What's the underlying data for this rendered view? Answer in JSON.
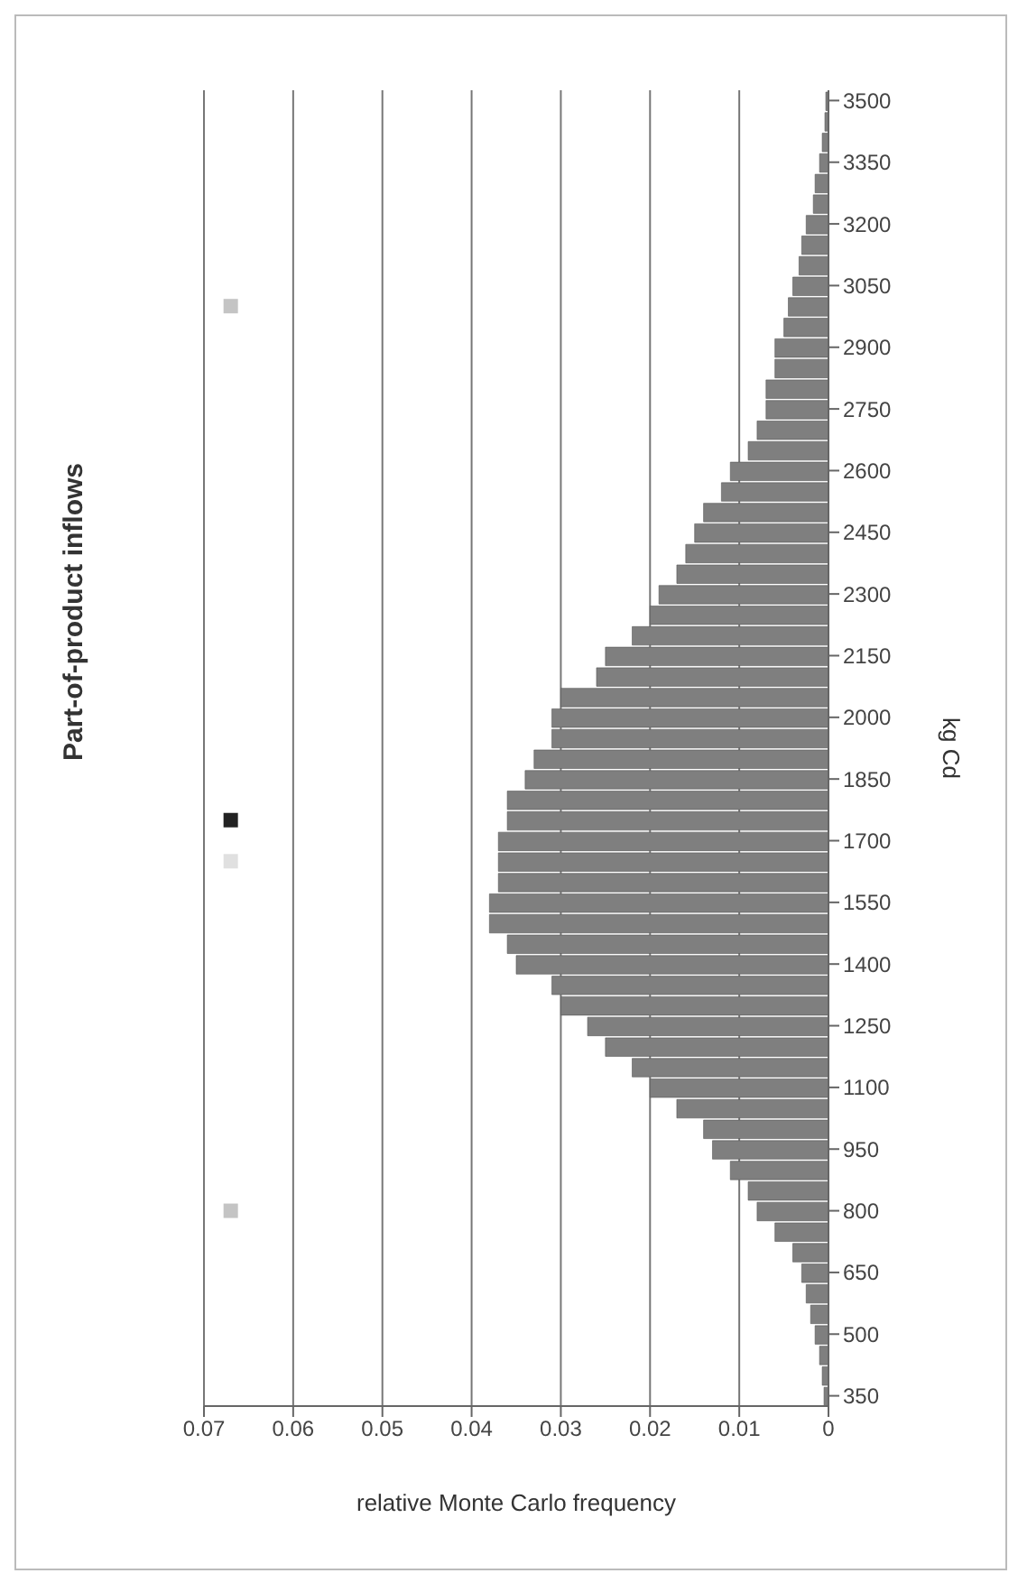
{
  "chart_data": {
    "type": "histogram",
    "orientation": "horizontal",
    "title": "Part-of-product inflows",
    "ylabel": "kg Cd",
    "xlabel": "relative Monte Carlo frequency",
    "bins": [
      325,
      375,
      425,
      475,
      525,
      575,
      625,
      675,
      725,
      775,
      825,
      875,
      925,
      975,
      1025,
      1075,
      1125,
      1175,
      1225,
      1275,
      1325,
      1375,
      1425,
      1475,
      1525,
      1575,
      1625,
      1675,
      1725,
      1775,
      1825,
      1875,
      1925,
      1975,
      2025,
      2075,
      2125,
      2175,
      2225,
      2275,
      2325,
      2375,
      2425,
      2475,
      2525,
      2575,
      2625,
      2675,
      2725,
      2775,
      2825,
      2875,
      2925,
      2975,
      3025,
      3075,
      3125,
      3175,
      3225,
      3275,
      3325,
      3375,
      3425,
      3475,
      3525
    ],
    "values": [
      0.0005,
      0.0007,
      0.001,
      0.0015,
      0.002,
      0.0025,
      0.003,
      0.004,
      0.006,
      0.008,
      0.009,
      0.011,
      0.013,
      0.014,
      0.017,
      0.02,
      0.022,
      0.025,
      0.027,
      0.03,
      0.031,
      0.035,
      0.036,
      0.038,
      0.038,
      0.037,
      0.037,
      0.037,
      0.036,
      0.036,
      0.034,
      0.033,
      0.031,
      0.031,
      0.03,
      0.026,
      0.025,
      0.022,
      0.02,
      0.019,
      0.017,
      0.016,
      0.015,
      0.014,
      0.012,
      0.011,
      0.009,
      0.008,
      0.007,
      0.007,
      0.006,
      0.006,
      0.005,
      0.0045,
      0.004,
      0.0033,
      0.003,
      0.0025,
      0.0017,
      0.0015,
      0.001,
      0.0007,
      0.0004,
      0.0003
    ],
    "color": "#7f7f7f",
    "series": [
      {
        "type": "scatter",
        "x": [
          800,
          1650,
          1750,
          3000
        ],
        "values": [
          0.067,
          0.067,
          0.067,
          0.067
        ],
        "marker": "square",
        "colors": [
          "#c4c4c4",
          "#e0e0e0",
          "#222222",
          "#c4c4c4"
        ]
      }
    ],
    "ylim": [
      325,
      3525
    ],
    "yticks": [
      350,
      500,
      650,
      800,
      950,
      1100,
      1250,
      1400,
      1550,
      1700,
      1850,
      2000,
      2150,
      2300,
      2450,
      2600,
      2750,
      2900,
      3050,
      3200,
      3350,
      3500
    ],
    "xlim": [
      0.07,
      0
    ],
    "xticks": [
      0,
      0.01,
      0.02,
      0.03,
      0.04,
      0.05,
      0.06,
      0.07
    ],
    "grid": "x"
  }
}
